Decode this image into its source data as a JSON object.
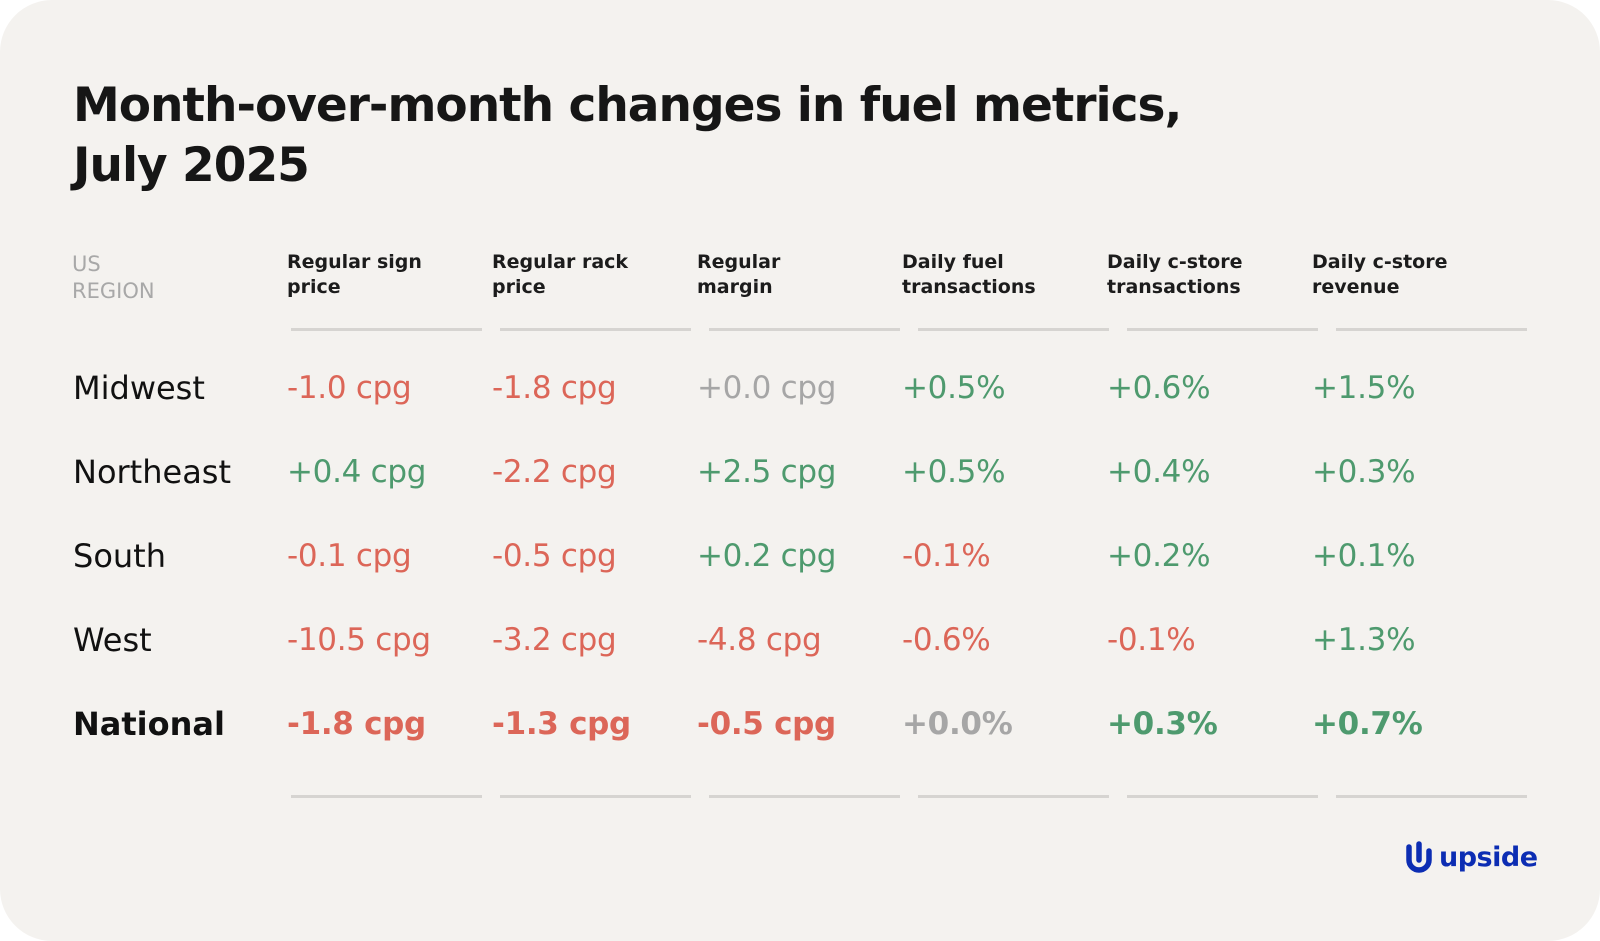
{
  "chart_data": {
    "type": "table",
    "title_lines": [
      "Month-over-month changes in fuel metrics,",
      "July 2025"
    ],
    "region_header": [
      "US",
      "REGION"
    ],
    "columns": [
      [
        "Regular sign",
        "price"
      ],
      [
        "Regular rack",
        "price"
      ],
      [
        "Regular",
        "margin"
      ],
      [
        "Daily fuel",
        "transactions"
      ],
      [
        "Daily c-store",
        "transactions"
      ],
      [
        "Daily c-store",
        "revenue"
      ]
    ],
    "rows": [
      {
        "region": "Midwest",
        "values": [
          "-1.0 cpg",
          "-1.8 cpg",
          "+0.0 cpg",
          "+0.5%",
          "+0.6%",
          "+1.5%"
        ],
        "signs": [
          "neg",
          "neg",
          "zero",
          "pos",
          "pos",
          "pos"
        ]
      },
      {
        "region": "Northeast",
        "values": [
          "+0.4 cpg",
          "-2.2 cpg",
          "+2.5 cpg",
          "+0.5%",
          "+0.4%",
          "+0.3%"
        ],
        "signs": [
          "pos",
          "neg",
          "pos",
          "pos",
          "pos",
          "pos"
        ]
      },
      {
        "region": "South",
        "values": [
          "-0.1 cpg",
          "-0.5 cpg",
          "+0.2 cpg",
          "-0.1%",
          "+0.2%",
          "+0.1%"
        ],
        "signs": [
          "neg",
          "neg",
          "pos",
          "neg",
          "pos",
          "pos"
        ]
      },
      {
        "region": "West",
        "values": [
          "-10.5 cpg",
          "-3.2 cpg",
          "-4.8 cpg",
          "-0.6%",
          "-0.1%",
          "+1.3%"
        ],
        "signs": [
          "neg",
          "neg",
          "neg",
          "neg",
          "neg",
          "pos"
        ]
      },
      {
        "region": "National",
        "values": [
          "-1.8 cpg",
          "-1.3 cpg",
          "-0.5 cpg",
          "+0.0%",
          "+0.3%",
          "+0.7%"
        ],
        "signs": [
          "neg",
          "neg",
          "neg",
          "zero",
          "pos",
          "pos"
        ],
        "emphasis": true
      }
    ]
  },
  "brand": {
    "name": "upside",
    "color": "#0c2db3"
  },
  "colors": {
    "negative": "#dc6658",
    "positive": "#4e9a6e",
    "neutral": "#a6a6a6",
    "background": "#f4f2ef"
  }
}
